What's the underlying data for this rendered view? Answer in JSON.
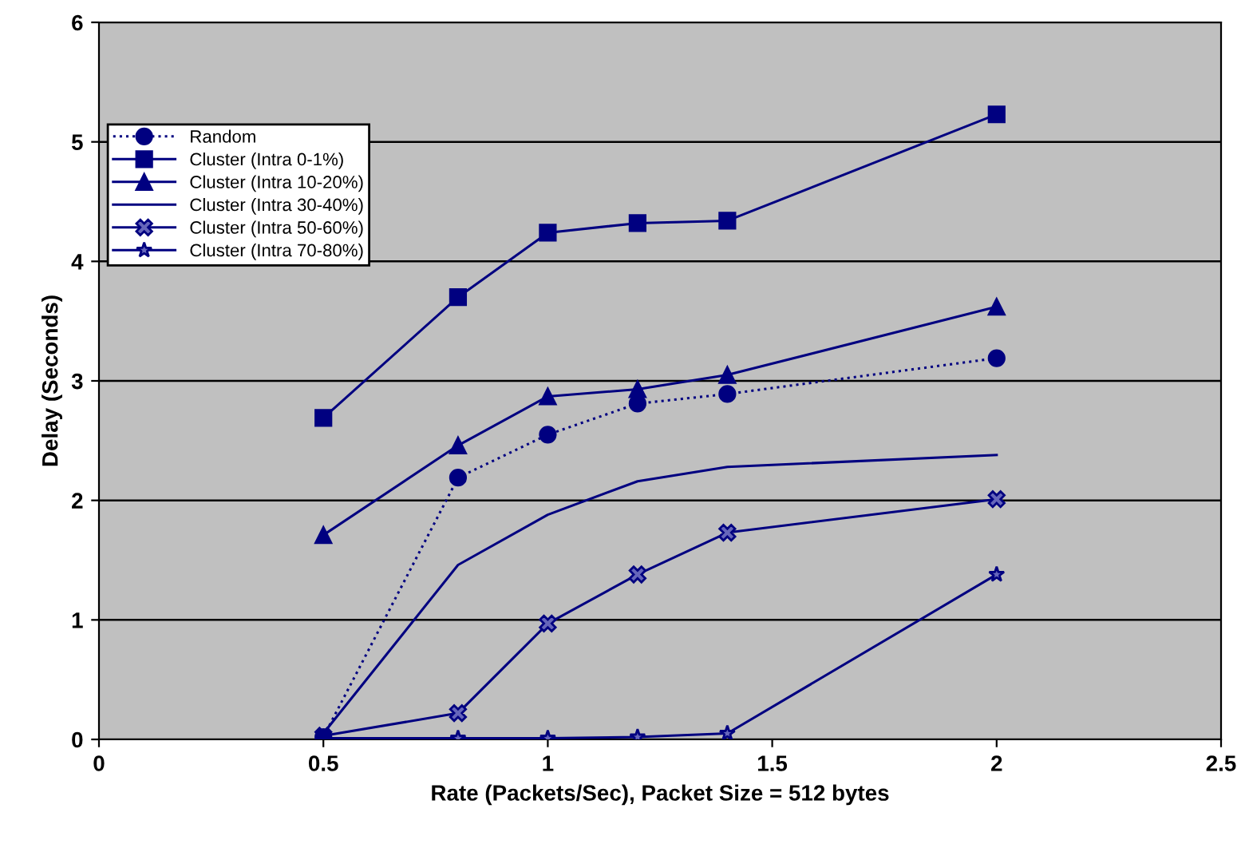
{
  "chart_data": {
    "type": "line",
    "xlabel": "Rate (Packets/Sec), Packet Size = 512 bytes",
    "ylabel": "Delay (Seconds)",
    "x": [
      0.5,
      0.8,
      1,
      1.2,
      1.4,
      2
    ],
    "xlim": [
      0,
      2.5
    ],
    "xticks": [
      0,
      0.5,
      1,
      1.5,
      2,
      2.5
    ],
    "ylim": [
      0,
      6
    ],
    "yticks": [
      0,
      1,
      2,
      3,
      4,
      5,
      6
    ],
    "grid": "y",
    "legend": "top left",
    "series": [
      {
        "name": "Random",
        "color": "#000080",
        "marker": "circle",
        "line_style": "dotted",
        "values": [
          0.02,
          2.19,
          2.55,
          2.81,
          2.89,
          3.19
        ]
      },
      {
        "name": "Cluster (Intra 0-1%)",
        "color": "#000080",
        "marker": "square",
        "line_style": "solid",
        "values": [
          2.69,
          3.7,
          4.24,
          4.32,
          4.34,
          5.23
        ]
      },
      {
        "name": "Cluster (Intra 10-20%)",
        "color": "#000080",
        "marker": "triangle",
        "line_style": "solid",
        "values": [
          1.71,
          2.46,
          2.87,
          2.93,
          3.05,
          3.62
        ]
      },
      {
        "name": "Cluster (Intra 30-40%)",
        "color": "#000080",
        "marker": "none",
        "line_style": "solid",
        "values": [
          0.05,
          1.46,
          1.88,
          2.16,
          2.28,
          2.38
        ]
      },
      {
        "name": "Cluster (Intra 50-60%)",
        "color": "#000080",
        "marker": "cross",
        "line_style": "solid",
        "values": [
          0.03,
          0.22,
          0.97,
          1.38,
          1.73,
          2.01
        ]
      },
      {
        "name": "Cluster (Intra 70-80%)",
        "color": "#000080",
        "marker": "star",
        "line_style": "solid",
        "values": [
          0.01,
          0.01,
          0.01,
          0.02,
          0.05,
          1.38
        ]
      }
    ]
  }
}
